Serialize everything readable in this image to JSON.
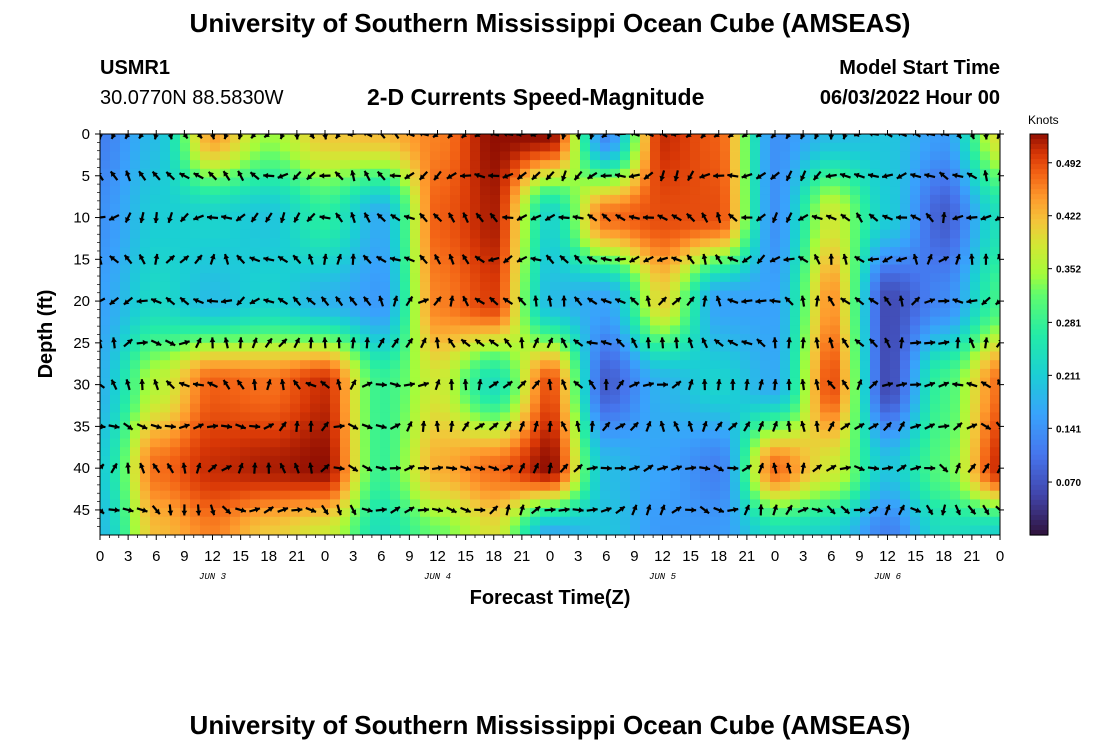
{
  "header": {
    "title": "University of Southern Mississippi Ocean Cube (AMSEAS)",
    "station": "USMR1",
    "coords": "30.0770N  88.5830W",
    "chart_subtitle": "2-D Currents Speed-Magnitude",
    "model_start_label": "Model Start Time",
    "model_start_value": "06/03/2022 Hour 00"
  },
  "footer": {
    "title": "University of Southern Mississippi Ocean Cube (AMSEAS)"
  },
  "chart_data": {
    "type": "heatmap",
    "title": "2-D Currents Speed-Magnitude",
    "xlabel": "Forecast Time(Z)",
    "ylabel": "Depth (ft)",
    "colorbar_label": "Knots",
    "colorbar_ticks": [
      "0.492",
      "0.422",
      "0.352",
      "0.281",
      "0.211",
      "0.141",
      "0.070"
    ],
    "colorbar_range": [
      0.0,
      0.53
    ],
    "x_range_hours": [
      0,
      96
    ],
    "x_tick_labels": [
      "0",
      "3",
      "6",
      "9",
      "12",
      "15",
      "18",
      "21",
      "0",
      "3",
      "6",
      "9",
      "12",
      "15",
      "18",
      "21",
      "0",
      "3",
      "6",
      "9",
      "12",
      "15",
      "18",
      "21",
      "0",
      "3",
      "6",
      "9",
      "12",
      "15",
      "18",
      "21",
      "0"
    ],
    "date_labels": [
      {
        "text": "JUN 3",
        "hour": 12
      },
      {
        "text": "JUN 4",
        "hour": 36
      },
      {
        "text": "JUN 5",
        "hour": 60
      },
      {
        "text": "JUN 6",
        "hour": 84
      }
    ],
    "y_range_ft": [
      0,
      48
    ],
    "y_tick_labels": [
      "0",
      "5",
      "10",
      "15",
      "20",
      "25",
      "30",
      "35",
      "40",
      "45"
    ],
    "grid_hours": [
      0,
      6,
      12,
      18,
      24,
      30,
      36,
      42,
      48,
      54,
      60,
      66,
      72,
      78,
      84,
      90,
      96
    ],
    "grid_depths_ft": [
      0,
      10,
      20,
      30,
      40,
      48
    ],
    "speed_knots": [
      [
        0.12,
        0.19,
        0.44,
        0.34,
        0.41,
        0.42,
        0.46,
        0.53,
        0.53,
        0.13,
        0.51,
        0.48,
        0.14,
        0.19,
        0.2,
        0.15,
        0.39
      ],
      [
        0.14,
        0.21,
        0.22,
        0.2,
        0.27,
        0.17,
        0.48,
        0.52,
        0.22,
        0.47,
        0.49,
        0.49,
        0.14,
        0.38,
        0.21,
        0.08,
        0.24
      ],
      [
        0.16,
        0.23,
        0.19,
        0.22,
        0.18,
        0.15,
        0.46,
        0.5,
        0.19,
        0.16,
        0.4,
        0.16,
        0.16,
        0.45,
        0.06,
        0.13,
        0.29
      ],
      [
        0.18,
        0.36,
        0.48,
        0.47,
        0.51,
        0.28,
        0.38,
        0.24,
        0.49,
        0.08,
        0.18,
        0.22,
        0.17,
        0.49,
        0.06,
        0.29,
        0.47
      ],
      [
        0.21,
        0.47,
        0.51,
        0.52,
        0.53,
        0.28,
        0.43,
        0.47,
        0.53,
        0.19,
        0.16,
        0.12,
        0.47,
        0.38,
        0.2,
        0.31,
        0.51
      ],
      [
        0.19,
        0.42,
        0.46,
        0.41,
        0.38,
        0.24,
        0.32,
        0.39,
        0.17,
        0.2,
        0.15,
        0.15,
        0.24,
        0.22,
        0.12,
        0.24,
        0.22
      ]
    ],
    "vector_rows_depth_ft": [
      0,
      5,
      10,
      15,
      20,
      25,
      30,
      35,
      40,
      45
    ],
    "vector_cols_hour_step": 1.5,
    "vector_directions_deg_seed": [
      [
        90,
        90,
        80,
        90,
        90,
        90,
        90,
        90,
        100,
        110,
        80,
        90,
        110,
        100,
        100,
        90,
        120,
        150,
        170,
        180,
        190,
        200,
        190,
        210,
        180,
        170,
        160,
        150,
        170,
        150,
        140,
        150,
        130,
        140,
        120,
        130,
        140,
        150,
        160,
        170,
        200,
        190,
        180,
        170,
        170,
        140,
        120,
        110,
        100,
        110,
        130,
        150,
        130,
        130,
        160,
        160,
        170,
        170,
        200,
        210,
        230
      ],
      [
        180,
        170,
        200,
        210,
        230,
        240,
        220,
        200,
        190,
        180,
        180,
        170,
        160,
        160,
        150,
        150,
        170,
        190,
        200,
        180,
        180,
        160,
        150,
        150,
        140,
        140,
        140,
        140,
        120,
        110,
        120,
        140,
        150,
        120,
        120,
        110,
        120,
        130,
        120,
        120,
        110,
        120,
        130,
        150,
        140,
        130,
        100,
        100,
        120,
        120,
        130,
        140,
        160,
        160,
        140,
        130,
        120,
        130,
        200,
        210,
        230
      ]
    ]
  }
}
